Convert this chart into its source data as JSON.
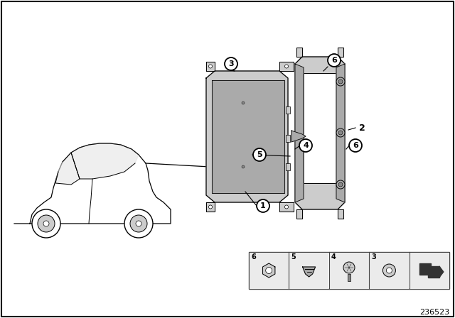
{
  "background_color": "#ffffff",
  "border_color": "#000000",
  "diagram_number": "236523",
  "gray_fill": "#b8b8b8",
  "light_gray": "#cccccc",
  "mid_gray": "#aaaaaa",
  "dark_gray": "#888888",
  "line_color": "#000000",
  "text_color": "#000000"
}
